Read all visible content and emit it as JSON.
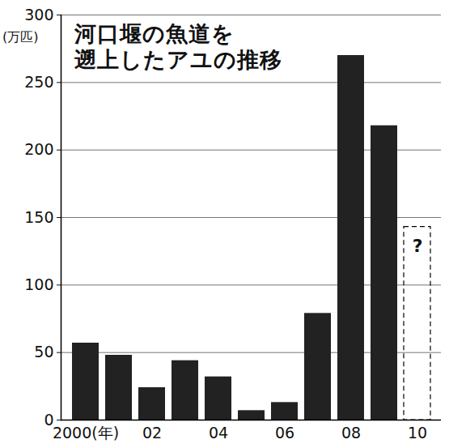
{
  "chart_data": {
    "type": "bar",
    "title": "河口堰の魚道を\n遡上したアユの推移",
    "y_label": "(万匹)",
    "categories": [
      "2000(年)",
      null,
      "02",
      null,
      "04",
      null,
      "06",
      null,
      "08",
      null,
      "10"
    ],
    "values": [
      57,
      48,
      24,
      44,
      32,
      7,
      13,
      79,
      270,
      218,
      null
    ],
    "color": "#222222",
    "ylim": [
      0,
      300
    ],
    "yticks": [
      0,
      50,
      100,
      150,
      200,
      250,
      300
    ],
    "grid": true,
    "annotations": [
      {
        "text": "?",
        "x": "10",
        "y": 143
      }
    ]
  }
}
